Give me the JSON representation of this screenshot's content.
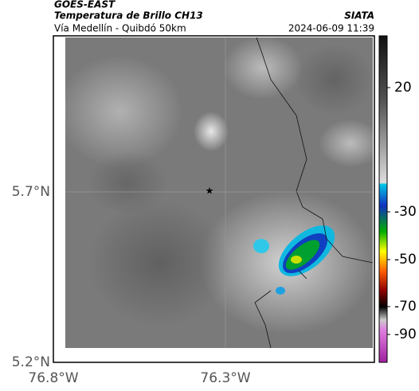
{
  "header": {
    "title": "GOES-EAST",
    "subtitle": "Temperatura de Brillo CH13",
    "route": "Vía Medellín - Quibdó 50km",
    "source": "SIATA",
    "datetime": "2024-06-09 11:39"
  },
  "map": {
    "lat_ticks": [
      "5.7°N",
      "5.2°N"
    ],
    "lon_ticks": [
      "76.8°W",
      "76.3°W"
    ],
    "colorbar_ticks": [
      "20",
      "-30",
      "-50",
      "-70",
      "-90"
    ]
  }
}
